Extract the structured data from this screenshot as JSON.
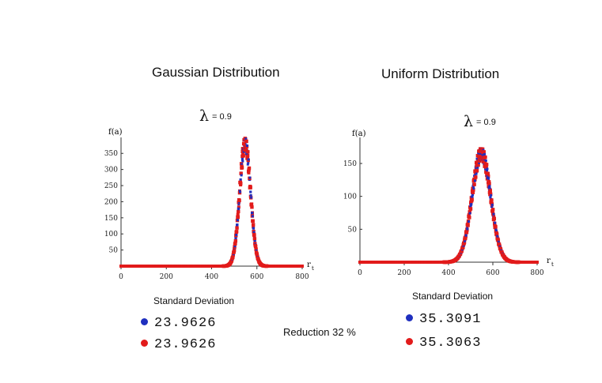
{
  "colors": {
    "series_blue": "#1f2fbf",
    "series_red": "#e21b1b",
    "axis": "#333333"
  },
  "reduction_label": "Reduction 32 %",
  "chart_data": [
    {
      "type": "scatter",
      "title": "Gaussian Distribution",
      "subtitle_symbol": "λ",
      "subtitle_value": "= 0.9",
      "ylabel": "f(a)",
      "xlabel": "r",
      "xlabel_sub": "t",
      "xlim": [
        0,
        800
      ],
      "ylim": [
        0,
        380
      ],
      "xticks": [
        0,
        200,
        400,
        600,
        800
      ],
      "yticks": [
        50,
        100,
        150,
        200,
        250,
        300,
        350
      ],
      "peak": {
        "center": 548,
        "height": 380,
        "sigma": 24
      },
      "std_label": "Standard Deviation",
      "series": [
        {
          "color": "blue",
          "std_value": "23.9626"
        },
        {
          "color": "red",
          "std_value": "23.9626"
        }
      ]
    },
    {
      "type": "scatter",
      "title": "Uniform Distribution",
      "subtitle_symbol": "λ",
      "subtitle_value": "= 0.9",
      "ylabel": "f(a)",
      "xlabel": "r",
      "xlabel_sub": "t",
      "xlim": [
        0,
        800
      ],
      "ylim": [
        0,
        180
      ],
      "xticks": [
        0,
        200,
        400,
        600,
        800
      ],
      "yticks": [
        50,
        100,
        150
      ],
      "peak": {
        "center": 548,
        "height": 165,
        "sigma": 42
      },
      "std_label": "Standard Deviation",
      "series": [
        {
          "color": "blue",
          "std_value": "35.3091"
        },
        {
          "color": "red",
          "std_value": "35.3063"
        }
      ]
    }
  ]
}
